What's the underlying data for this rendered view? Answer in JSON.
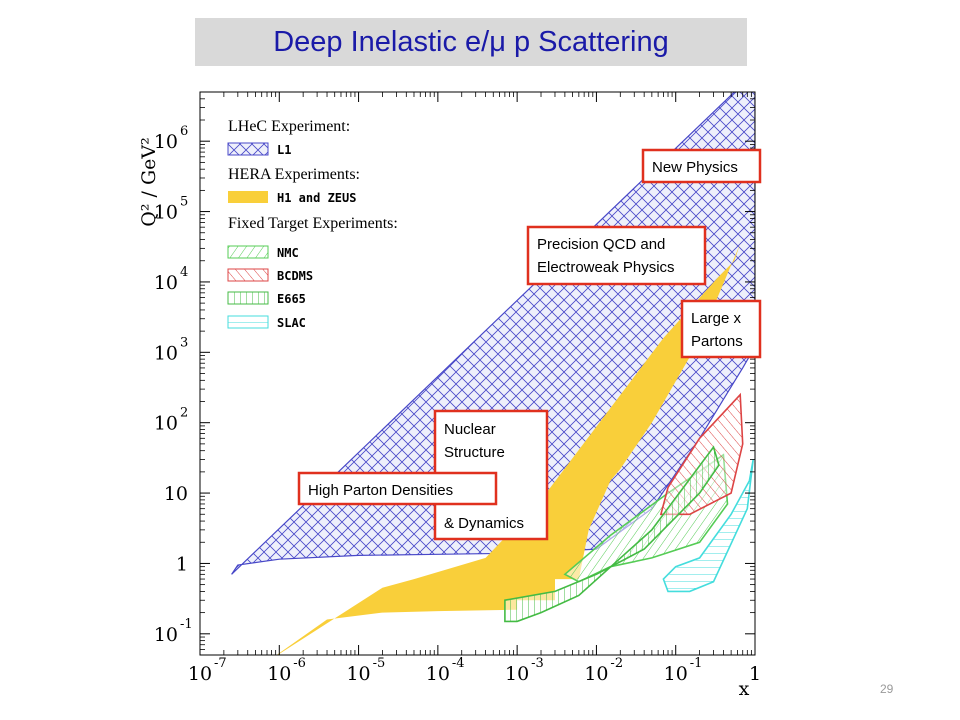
{
  "title": "Deep Inelastic e/μ p Scattering",
  "page_number": "29",
  "colors": {
    "title_text": "#1a1aa8",
    "title_bg": "#d9d9d9",
    "lhec": "#4848c8",
    "hera": "#f9cf3a",
    "nmc": "#55cc55",
    "bcdms": "#dd4444",
    "e665": "#44bb44",
    "slac": "#44dddd",
    "annotation_border": "#e0301e"
  },
  "chart_data": {
    "type": "area",
    "xlabel": "x",
    "ylabel": "Q² / GeV²",
    "x_scale": "log",
    "y_scale": "log",
    "xlim": [
      1e-07,
      1
    ],
    "ylim": [
      0.05,
      5000000.0
    ],
    "x_ticks": [
      {
        "value": 1e-07,
        "base": "10",
        "exp": "-7"
      },
      {
        "value": 1e-06,
        "base": "10",
        "exp": "-6"
      },
      {
        "value": 1e-05,
        "base": "10",
        "exp": "-5"
      },
      {
        "value": 0.0001,
        "base": "10",
        "exp": "-4"
      },
      {
        "value": 0.001,
        "base": "10",
        "exp": "-3"
      },
      {
        "value": 0.01,
        "base": "10",
        "exp": "-2"
      },
      {
        "value": 0.1,
        "base": "10",
        "exp": "-1"
      },
      {
        "value": 1,
        "base": "1",
        "exp": ""
      }
    ],
    "y_ticks": [
      {
        "value": 0.1,
        "base": "10",
        "exp": "-1"
      },
      {
        "value": 1,
        "base": "1",
        "exp": ""
      },
      {
        "value": 10,
        "base": "10",
        "exp": ""
      },
      {
        "value": 100,
        "base": "10",
        "exp": "2"
      },
      {
        "value": 1000,
        "base": "10",
        "exp": "3"
      },
      {
        "value": 10000,
        "base": "10",
        "exp": "4"
      },
      {
        "value": 100000,
        "base": "10",
        "exp": "5"
      },
      {
        "value": 1000000,
        "base": "10",
        "exp": "6"
      }
    ],
    "legend_sections": [
      {
        "heading": "LHeC Experiment:",
        "items": [
          {
            "label": "L1",
            "pattern": "lhec"
          }
        ]
      },
      {
        "heading": "HERA Experiments:",
        "items": [
          {
            "label": "H1 and ZEUS",
            "pattern": "hera"
          }
        ]
      },
      {
        "heading": "Fixed Target Experiments:",
        "items": [
          {
            "label": "NMC",
            "pattern": "nmc"
          },
          {
            "label": "BCDMS",
            "pattern": "bcdms"
          },
          {
            "label": "E665",
            "pattern": "e665"
          },
          {
            "label": "SLAC",
            "pattern": "slac"
          }
        ]
      }
    ],
    "regions": [
      {
        "name": "L1",
        "pattern": "lhec",
        "points": [
          [
            2.5e-07,
            0.7
          ],
          [
            3e-07,
            0.95
          ],
          [
            1e-06,
            1.15
          ],
          [
            1e-05,
            1.3
          ],
          [
            0.0001,
            1.35
          ],
          [
            0.001,
            1.4
          ],
          [
            0.01,
            1.6
          ],
          [
            0.05,
            6
          ],
          [
            0.2,
            60
          ],
          [
            0.7,
            600
          ],
          [
            1,
            1200
          ],
          [
            1,
            8000000.0
          ],
          [
            0.85,
            8000000.0
          ]
        ]
      },
      {
        "name": "H1 and ZEUS",
        "pattern": "hera",
        "points": [
          [
            7e-07,
            0.04
          ],
          [
            4e-06,
            0.16
          ],
          [
            2e-05,
            0.2
          ],
          [
            0.0001,
            0.21
          ],
          [
            0.001,
            0.22
          ],
          [
            0.001,
            0.3
          ],
          [
            0.003,
            0.3
          ],
          [
            0.003,
            0.6
          ],
          [
            0.006,
            0.6
          ],
          [
            0.008,
            3
          ],
          [
            0.015,
            15
          ],
          [
            0.02,
            22
          ],
          [
            0.05,
            100
          ],
          [
            0.2,
            1500
          ],
          [
            0.65,
            35000
          ],
          [
            0.55,
            20000
          ],
          [
            0.35,
            12000
          ],
          [
            0.07,
            1600
          ],
          [
            0.002,
            8
          ],
          [
            0.0004,
            1.2
          ],
          [
            5e-05,
            0.6
          ],
          [
            2e-05,
            0.45
          ]
        ]
      },
      {
        "name": "NMC",
        "pattern": "nmc",
        "points": [
          [
            0.004,
            0.7
          ],
          [
            0.015,
            2.5
          ],
          [
            0.08,
            10
          ],
          [
            0.4,
            35
          ],
          [
            0.45,
            7
          ],
          [
            0.2,
            2
          ],
          [
            0.05,
            1.2
          ],
          [
            0.015,
            0.9
          ],
          [
            0.006,
            0.55
          ]
        ]
      },
      {
        "name": "BCDMS",
        "pattern": "bcdms",
        "points": [
          [
            0.065,
            5
          ],
          [
            0.08,
            12
          ],
          [
            0.2,
            60
          ],
          [
            0.65,
            250
          ],
          [
            0.7,
            50
          ],
          [
            0.5,
            10
          ],
          [
            0.15,
            5
          ]
        ]
      },
      {
        "name": "E665",
        "pattern": "e665",
        "points": [
          [
            0.0007,
            0.15
          ],
          [
            0.001,
            0.15
          ],
          [
            0.002,
            0.2
          ],
          [
            0.006,
            0.35
          ],
          [
            0.05,
            3
          ],
          [
            0.3,
            45
          ],
          [
            0.35,
            25
          ],
          [
            0.2,
            10
          ],
          [
            0.04,
            1.6
          ],
          [
            0.01,
            0.7
          ],
          [
            0.003,
            0.4
          ],
          [
            0.0007,
            0.3
          ]
        ]
      },
      {
        "name": "SLAC",
        "pattern": "slac",
        "points": [
          [
            0.08,
            0.4
          ],
          [
            0.15,
            0.4
          ],
          [
            0.3,
            0.55
          ],
          [
            0.8,
            6
          ],
          [
            0.95,
            30
          ],
          [
            0.85,
            15
          ],
          [
            0.5,
            5
          ],
          [
            0.2,
            1.2
          ],
          [
            0.1,
            0.9
          ],
          [
            0.07,
            0.6
          ]
        ]
      }
    ],
    "annotations": [
      {
        "lines": [
          "New Physics"
        ]
      },
      {
        "lines": [
          "Precision QCD and",
          "Electroweak Physics"
        ]
      },
      {
        "lines": [
          "Large x",
          "Partons"
        ]
      },
      {
        "lines": [
          "Nuclear",
          "Structure",
          "",
          "& Dynamics"
        ]
      },
      {
        "lines": [
          "High Parton Densities"
        ]
      }
    ]
  }
}
